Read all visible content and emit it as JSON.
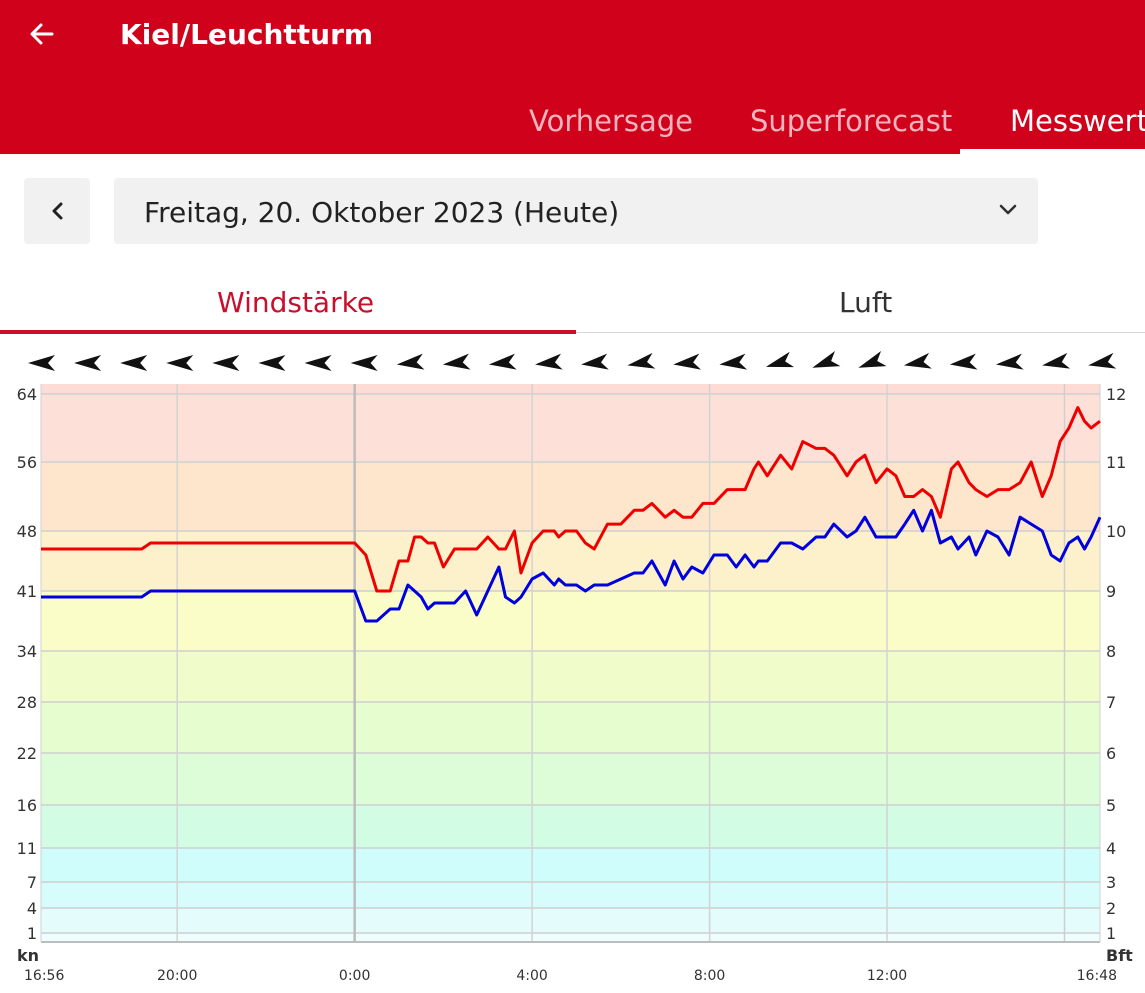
{
  "app": {
    "title": "Kiel/Leuchtturm",
    "tabs": [
      {
        "label": "Vorhersage",
        "active": false
      },
      {
        "label": "Superforecast",
        "active": false
      },
      {
        "label": "Messwerte",
        "active": true
      }
    ]
  },
  "date_selector": {
    "value": "Freitag, 20. Oktober 2023 (Heute)"
  },
  "subtabs": [
    {
      "label": "Windstärke",
      "active": true
    },
    {
      "label": "Luft",
      "active": false
    }
  ],
  "colors": {
    "brand": "#d0021b",
    "accent": "#c8102e",
    "gust_line": "#ee0000",
    "mean_line": "#0000dd"
  },
  "chart_data": {
    "type": "line",
    "left_unit": "kn",
    "right_unit": "Bft",
    "left_ticks": [
      1,
      4,
      7,
      11,
      16,
      22,
      28,
      34,
      41,
      48,
      56,
      64
    ],
    "right_ticks": [
      1,
      2,
      3,
      4,
      5,
      6,
      7,
      8,
      9,
      10,
      11,
      12
    ],
    "x_tick_labels": [
      "16:56",
      "20:00",
      "0:00",
      "4:00",
      "8:00",
      "12:00",
      "16:48"
    ],
    "x_tick_hours": [
      -7.07,
      -4,
      0,
      4,
      8,
      12,
      16.8
    ],
    "xlim_hours": [
      -7.07,
      16.8
    ],
    "ylim_bft": [
      0.9,
      12
    ],
    "grid": true,
    "wind_direction_arrow_count": 24,
    "wind_direction_icon": "arrowhead-icon",
    "series": [
      {
        "x": [
          -7.07,
          -4.8,
          -4.6,
          -0.2,
          0.0,
          0.25,
          0.5,
          0.8,
          1.0,
          1.2,
          1.35,
          1.5,
          1.65,
          1.8,
          2.0,
          2.25,
          2.5,
          2.75,
          3.0,
          3.25,
          3.4,
          3.6,
          3.75,
          4.0,
          4.25,
          4.5,
          4.6,
          4.75,
          5.0,
          5.2,
          5.4,
          5.7,
          6.0,
          6.3,
          6.5,
          6.7,
          7.0,
          7.2,
          7.4,
          7.6,
          7.85,
          8.1,
          8.4,
          8.6,
          8.8,
          9.0,
          9.1,
          9.3,
          9.6,
          9.85,
          10.1,
          10.4,
          10.6,
          10.8,
          11.1,
          11.3,
          11.5,
          11.75,
          12.0,
          12.2,
          12.4,
          12.6,
          12.8,
          13.0,
          13.2,
          13.45,
          13.6,
          13.85,
          14.0,
          14.25,
          14.5,
          14.75,
          15.0,
          15.25,
          15.5,
          15.7,
          15.9,
          16.1,
          16.3,
          16.45,
          16.6,
          16.8
        ],
        "y": [
          8.9,
          8.9,
          9.0,
          9.0,
          9.0,
          8.5,
          8.5,
          8.7,
          8.7,
          9.1,
          9.0,
          8.9,
          8.7,
          8.8,
          8.8,
          8.8,
          9.0,
          8.6,
          9.0,
          9.4,
          8.9,
          8.8,
          8.9,
          9.2,
          9.3,
          9.1,
          9.2,
          9.1,
          9.1,
          9.0,
          9.1,
          9.1,
          9.2,
          9.3,
          9.3,
          9.5,
          9.1,
          9.5,
          9.2,
          9.4,
          9.3,
          9.6,
          9.6,
          9.4,
          9.6,
          9.4,
          9.5,
          9.5,
          9.8,
          9.8,
          9.7,
          9.9,
          9.9,
          10.1,
          9.9,
          10.0,
          10.2,
          9.9,
          9.9,
          9.9,
          10.1,
          10.3,
          10.0,
          10.3,
          9.8,
          9.9,
          9.7,
          9.9,
          9.6,
          10.0,
          9.9,
          9.6,
          10.2,
          10.1,
          10.0,
          9.6,
          9.5,
          9.8,
          9.9,
          9.7,
          9.9,
          10.2
        ]
      },
      {
        "x": [
          -7.07,
          -4.8,
          -4.6,
          -0.2,
          0.0,
          0.25,
          0.5,
          0.8,
          1.0,
          1.2,
          1.35,
          1.5,
          1.65,
          1.8,
          2.0,
          2.25,
          2.5,
          2.75,
          3.0,
          3.25,
          3.4,
          3.6,
          3.75,
          4.0,
          4.25,
          4.5,
          4.6,
          4.75,
          5.0,
          5.2,
          5.4,
          5.7,
          6.0,
          6.3,
          6.5,
          6.7,
          7.0,
          7.2,
          7.4,
          7.6,
          7.85,
          8.1,
          8.4,
          8.6,
          8.8,
          9.0,
          9.1,
          9.3,
          9.6,
          9.85,
          10.1,
          10.4,
          10.6,
          10.8,
          11.1,
          11.3,
          11.5,
          11.75,
          12.0,
          12.2,
          12.4,
          12.6,
          12.8,
          13.0,
          13.2,
          13.45,
          13.6,
          13.85,
          14.0,
          14.25,
          14.5,
          14.75,
          15.0,
          15.25,
          15.5,
          15.7,
          15.9,
          16.1,
          16.3,
          16.45,
          16.6,
          16.8
        ],
        "y": [
          9.7,
          9.7,
          9.8,
          9.8,
          9.8,
          9.6,
          9.0,
          9.0,
          9.5,
          9.5,
          9.9,
          9.9,
          9.8,
          9.8,
          9.4,
          9.7,
          9.7,
          9.7,
          9.9,
          9.7,
          9.7,
          10.0,
          9.3,
          9.8,
          10.0,
          10.0,
          9.9,
          10.0,
          10.0,
          9.8,
          9.7,
          10.1,
          10.1,
          10.3,
          10.3,
          10.4,
          10.2,
          10.3,
          10.2,
          10.2,
          10.4,
          10.4,
          10.6,
          10.6,
          10.6,
          10.9,
          11.0,
          10.8,
          11.1,
          10.9,
          11.3,
          11.2,
          11.2,
          11.1,
          10.8,
          11.0,
          11.1,
          10.7,
          10.9,
          10.8,
          10.5,
          10.5,
          10.6,
          10.5,
          10.2,
          10.9,
          11.0,
          10.7,
          10.6,
          10.5,
          10.6,
          10.6,
          10.7,
          11.0,
          10.5,
          10.8,
          11.3,
          11.5,
          11.8,
          11.6,
          11.5,
          11.6
        ]
      }
    ]
  }
}
